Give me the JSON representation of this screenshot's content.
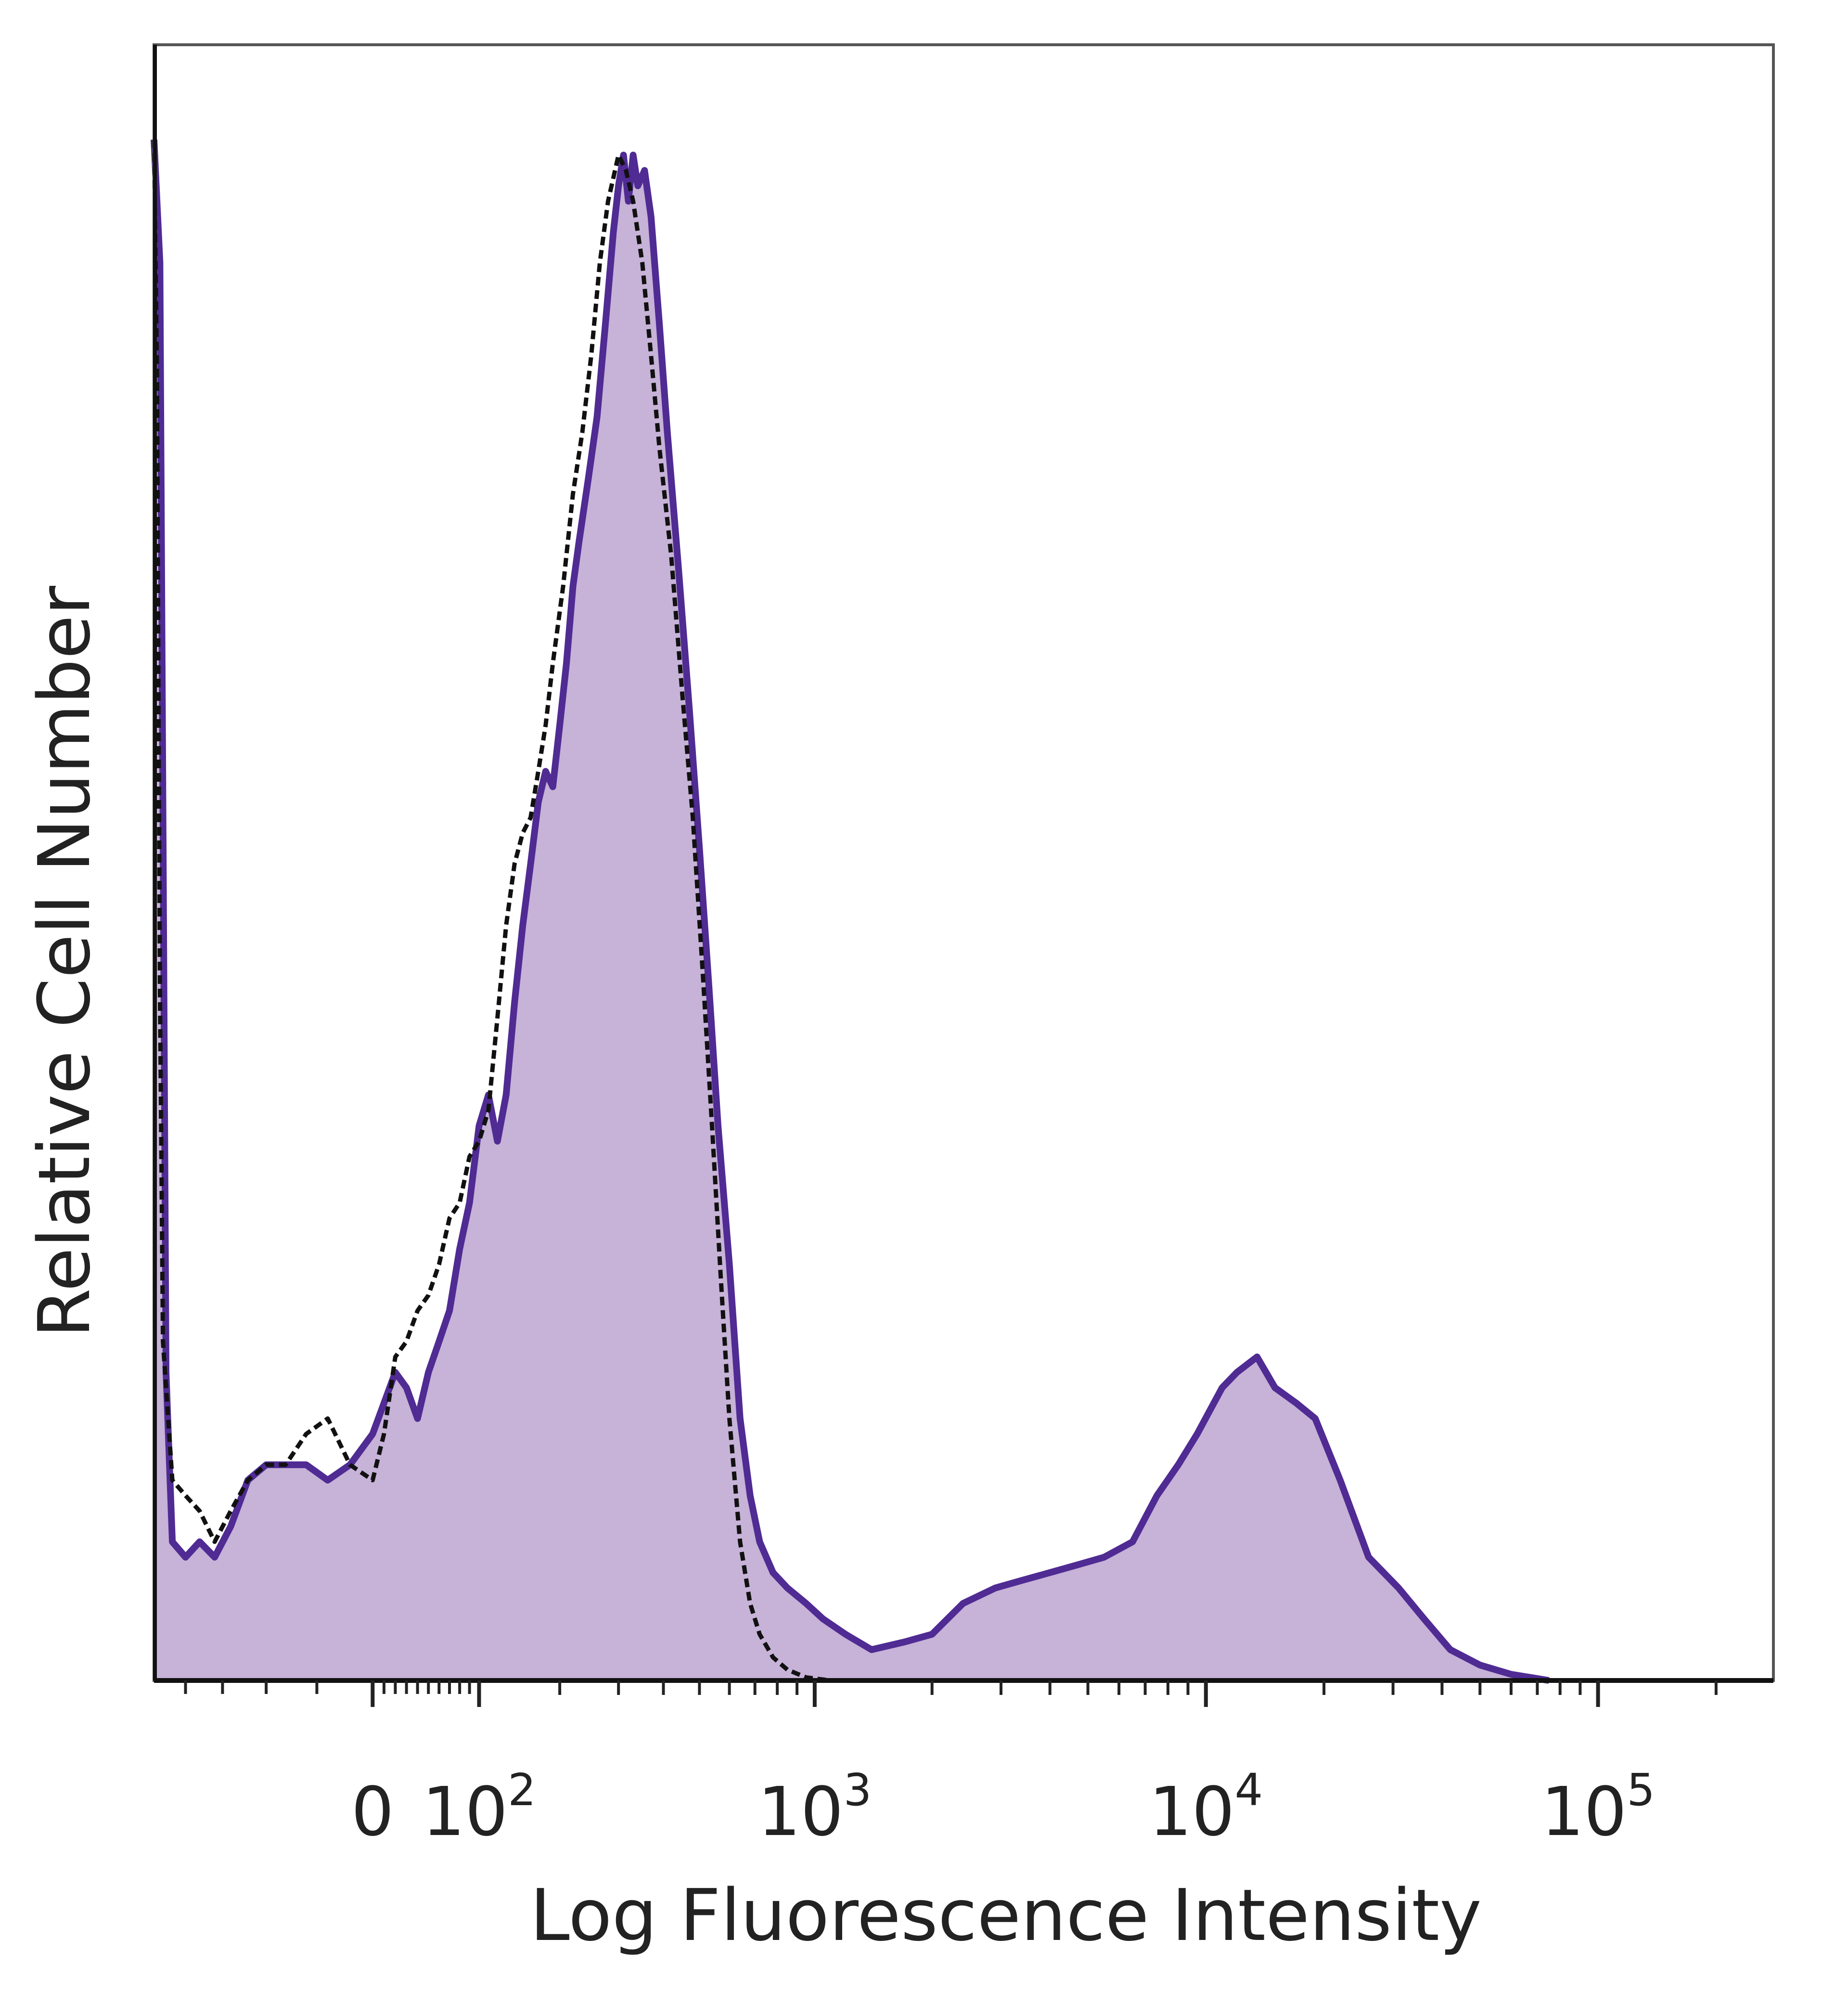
{
  "chart_data": {
    "type": "area",
    "title": "",
    "xlabel": "Log Fluorescence Intensity",
    "ylabel": "Relative Cell Number",
    "x_scale": "biexponential",
    "xlim": [
      -250,
      280000
    ],
    "ylim": [
      0,
      100
    ],
    "y_ticks_shown": false,
    "grid": false,
    "legend": "none",
    "x_tick_labels": [
      {
        "value": 0,
        "label": "0",
        "sup": ""
      },
      {
        "value": 100,
        "label": "10",
        "sup": "2"
      },
      {
        "value": 1000,
        "label": "10",
        "sup": "3"
      },
      {
        "value": 10000,
        "label": "10",
        "sup": "4"
      },
      {
        "value": 100000,
        "label": "10",
        "sup": "5"
      }
    ],
    "series": [
      {
        "style": "filled",
        "color": "#4f2b93",
        "fill": "#c7b2d8",
        "points": [
          [
            -250,
            100
          ],
          [
            -240,
            92
          ],
          [
            -230,
            20
          ],
          [
            -220,
            9
          ],
          [
            -200,
            8
          ],
          [
            -180,
            9
          ],
          [
            -160,
            8
          ],
          [
            -140,
            10
          ],
          [
            -120,
            13
          ],
          [
            -100,
            14
          ],
          [
            -80,
            14
          ],
          [
            -60,
            14
          ],
          [
            -40,
            13
          ],
          [
            -20,
            14
          ],
          [
            0,
            16
          ],
          [
            10,
            18
          ],
          [
            20,
            20
          ],
          [
            30,
            19
          ],
          [
            40,
            17
          ],
          [
            50,
            20
          ],
          [
            60,
            22
          ],
          [
            70,
            24
          ],
          [
            80,
            28
          ],
          [
            90,
            31
          ],
          [
            100,
            36
          ],
          [
            110,
            38
          ],
          [
            120,
            35
          ],
          [
            130,
            38
          ],
          [
            140,
            44
          ],
          [
            150,
            49
          ],
          [
            160,
            53
          ],
          [
            170,
            57
          ],
          [
            180,
            59
          ],
          [
            190,
            58
          ],
          [
            200,
            62
          ],
          [
            210,
            66
          ],
          [
            220,
            71
          ],
          [
            230,
            74
          ],
          [
            245,
            78
          ],
          [
            260,
            82
          ],
          [
            275,
            88
          ],
          [
            290,
            94
          ],
          [
            300,
            97
          ],
          [
            310,
            99
          ],
          [
            320,
            96
          ],
          [
            330,
            99
          ],
          [
            340,
            97
          ],
          [
            355,
            98
          ],
          [
            370,
            95
          ],
          [
            390,
            88
          ],
          [
            410,
            81
          ],
          [
            440,
            72
          ],
          [
            470,
            63
          ],
          [
            500,
            54
          ],
          [
            530,
            45
          ],
          [
            560,
            36
          ],
          [
            600,
            27
          ],
          [
            640,
            17
          ],
          [
            680,
            12
          ],
          [
            720,
            9
          ],
          [
            780,
            7
          ],
          [
            850,
            6
          ],
          [
            950,
            5
          ],
          [
            1050,
            4
          ],
          [
            1200,
            3
          ],
          [
            1400,
            2
          ],
          [
            1700,
            2.5
          ],
          [
            2000,
            3
          ],
          [
            2400,
            5
          ],
          [
            2900,
            6
          ],
          [
            3400,
            6.5
          ],
          [
            4000,
            7
          ],
          [
            4700,
            7.5
          ],
          [
            5500,
            8
          ],
          [
            6500,
            9
          ],
          [
            7500,
            12
          ],
          [
            8500,
            14
          ],
          [
            9500,
            16
          ],
          [
            11000,
            19
          ],
          [
            12000,
            20
          ],
          [
            13500,
            21
          ],
          [
            15000,
            19
          ],
          [
            17000,
            18
          ],
          [
            19000,
            17
          ],
          [
            22000,
            13
          ],
          [
            26000,
            8
          ],
          [
            31000,
            6
          ],
          [
            36000,
            4
          ],
          [
            42000,
            2
          ],
          [
            50000,
            1
          ],
          [
            60000,
            0.4
          ],
          [
            75000,
            0
          ]
        ]
      },
      {
        "style": "dashed",
        "color": "#111111",
        "points": [
          [
            -250,
            100
          ],
          [
            -245,
            85
          ],
          [
            -240,
            45
          ],
          [
            -235,
            22
          ],
          [
            -220,
            13
          ],
          [
            -200,
            12
          ],
          [
            -180,
            11
          ],
          [
            -160,
            9
          ],
          [
            -140,
            11
          ],
          [
            -120,
            13
          ],
          [
            -100,
            14
          ],
          [
            -80,
            14
          ],
          [
            -60,
            16
          ],
          [
            -40,
            17
          ],
          [
            -20,
            14
          ],
          [
            0,
            13
          ],
          [
            10,
            16
          ],
          [
            20,
            21
          ],
          [
            30,
            22
          ],
          [
            40,
            24
          ],
          [
            50,
            25
          ],
          [
            60,
            27
          ],
          [
            70,
            30
          ],
          [
            80,
            31
          ],
          [
            90,
            34
          ],
          [
            100,
            35
          ],
          [
            110,
            37
          ],
          [
            120,
            43
          ],
          [
            130,
            49
          ],
          [
            140,
            53
          ],
          [
            150,
            55
          ],
          [
            160,
            56
          ],
          [
            170,
            59
          ],
          [
            180,
            62
          ],
          [
            190,
            66
          ],
          [
            205,
            71
          ],
          [
            220,
            77
          ],
          [
            235,
            81
          ],
          [
            250,
            86
          ],
          [
            265,
            92
          ],
          [
            280,
            96
          ],
          [
            300,
            99
          ],
          [
            315,
            98
          ],
          [
            330,
            96
          ],
          [
            350,
            92
          ],
          [
            370,
            86
          ],
          [
            390,
            80
          ],
          [
            420,
            73
          ],
          [
            450,
            64
          ],
          [
            480,
            56
          ],
          [
            510,
            46
          ],
          [
            540,
            36
          ],
          [
            570,
            26
          ],
          [
            600,
            17
          ],
          [
            640,
            9
          ],
          [
            680,
            5
          ],
          [
            720,
            3
          ],
          [
            780,
            1.5
          ],
          [
            850,
            0.7
          ],
          [
            950,
            0.2
          ],
          [
            1100,
            0
          ]
        ]
      }
    ]
  }
}
